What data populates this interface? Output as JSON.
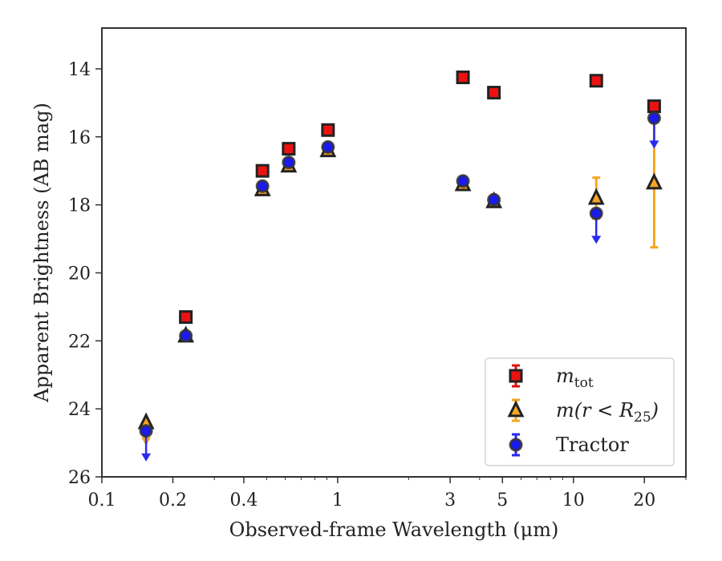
{
  "chart_data": {
    "type": "scatter",
    "title": "",
    "xlabel": "Observed-frame Wavelength (μm)",
    "ylabel": "Apparent Brightness (AB mag)",
    "xscale": "log",
    "yaxis_inverted": true,
    "xlim": [
      0.1,
      30
    ],
    "ylim": [
      26,
      12.8
    ],
    "xticks": [
      {
        "value": 0.1,
        "label": "0.1"
      },
      {
        "value": 0.2,
        "label": "0.2"
      },
      {
        "value": 0.4,
        "label": "0.4"
      },
      {
        "value": 1,
        "label": "1"
      },
      {
        "value": 3,
        "label": "3"
      },
      {
        "value": 5,
        "label": "5"
      },
      {
        "value": 10,
        "label": "10"
      },
      {
        "value": 20,
        "label": "20"
      }
    ],
    "yticks": [
      {
        "value": 14,
        "label": "14"
      },
      {
        "value": 16,
        "label": "16"
      },
      {
        "value": 18,
        "label": "18"
      },
      {
        "value": 20,
        "label": "20"
      },
      {
        "value": 22,
        "label": "22"
      },
      {
        "value": 24,
        "label": "24"
      },
      {
        "value": 26,
        "label": "26"
      }
    ],
    "legend_position": "lower-right",
    "series": [
      {
        "name": "m_tot",
        "legend_label": {
          "base": "m",
          "sub": "tot"
        },
        "marker": "square",
        "face_color": "#ee1111",
        "edge_color": "#222222",
        "err_color": "#dd1111",
        "points": [
          {
            "x": 0.227,
            "y": 21.3
          },
          {
            "x": 0.48,
            "y": 17.0
          },
          {
            "x": 0.62,
            "y": 16.35
          },
          {
            "x": 0.91,
            "y": 15.8
          },
          {
            "x": 3.4,
            "y": 14.25
          },
          {
            "x": 4.6,
            "y": 14.7
          },
          {
            "x": 12.5,
            "y": 14.35
          },
          {
            "x": 22.0,
            "y": 15.1
          }
        ]
      },
      {
        "name": "m(r<R25)",
        "legend_label": {
          "base": "m(r < R",
          "sub": "25",
          "tail": ")"
        },
        "marker": "triangle",
        "face_color": "#f5a623",
        "edge_color": "#222222",
        "err_color": "#f5a623",
        "points": [
          {
            "x": 0.154,
            "y": 24.4,
            "upper_limit": true,
            "err_low": 0.3
          },
          {
            "x": 0.227,
            "y": 21.85
          },
          {
            "x": 0.48,
            "y": 17.55
          },
          {
            "x": 0.62,
            "y": 16.85
          },
          {
            "x": 0.91,
            "y": 16.4
          },
          {
            "x": 3.4,
            "y": 17.4
          },
          {
            "x": 4.6,
            "y": 17.9
          },
          {
            "x": 12.5,
            "y": 17.8,
            "err_low": 0.6,
            "err_high": 0.6
          },
          {
            "x": 22.0,
            "y": 17.35,
            "err_low": 1.9,
            "err_high": 1.9
          }
        ]
      },
      {
        "name": "Tractor",
        "legend_label": {
          "base": "Tractor"
        },
        "marker": "circle",
        "face_color": "#1a1aee",
        "edge_color": "#333333",
        "err_color": "#2a2aee",
        "points": [
          {
            "x": 0.154,
            "y": 24.65,
            "upper_limit": true
          },
          {
            "x": 0.227,
            "y": 21.85
          },
          {
            "x": 0.48,
            "y": 17.45
          },
          {
            "x": 0.62,
            "y": 16.75
          },
          {
            "x": 0.91,
            "y": 16.3
          },
          {
            "x": 3.4,
            "y": 17.3
          },
          {
            "x": 4.6,
            "y": 17.85
          },
          {
            "x": 12.5,
            "y": 18.25,
            "upper_limit": true
          },
          {
            "x": 22.0,
            "y": 15.45,
            "upper_limit": true
          }
        ]
      }
    ]
  }
}
